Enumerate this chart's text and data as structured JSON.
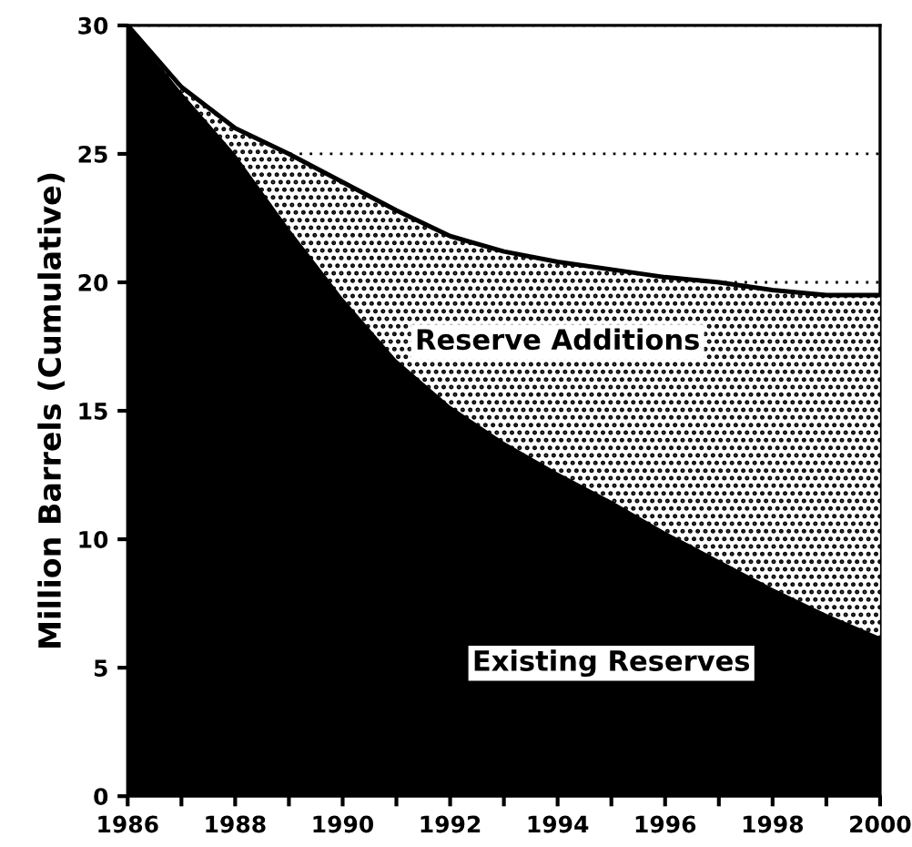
{
  "chart_data": {
    "type": "area",
    "stacked": true,
    "ylabel": "Million Barrels (Cumulative)",
    "x": [
      1986,
      1987,
      1988,
      1989,
      1990,
      1991,
      1992,
      1993,
      1994,
      1995,
      1996,
      1997,
      1998,
      1999,
      2000
    ],
    "series": [
      {
        "name": "Existing Reserves",
        "color": "#000000",
        "values": [
          30,
          27.4,
          25.0,
          22.1,
          19.4,
          17.0,
          15.2,
          13.8,
          12.6,
          11.5,
          10.3,
          9.2,
          8.1,
          7.1,
          6.2
        ]
      },
      {
        "name": "Reserve Additions",
        "color": "#ffffff",
        "values": [
          0,
          0.2,
          1.0,
          2.9,
          4.5,
          5.8,
          6.6,
          7.4,
          8.2,
          9.0,
          9.9,
          10.8,
          11.6,
          12.4,
          13.3
        ]
      }
    ],
    "xlim": [
      1986,
      2000
    ],
    "ylim": [
      0,
      30
    ],
    "xticks": [
      1986,
      {
        "value": 1987,
        "label": null
      },
      1988,
      {
        "value": 1989,
        "label": null
      },
      1990,
      {
        "value": 1991,
        "label": null
      },
      1992,
      {
        "value": 1993,
        "label": null
      },
      1994,
      {
        "value": 1995,
        "label": null
      },
      1996,
      {
        "value": 1997,
        "label": null
      },
      1998,
      {
        "value": 1999,
        "label": null
      },
      2000
    ],
    "yticks": [
      0,
      5,
      10,
      15,
      20,
      25,
      30
    ],
    "grid": "y",
    "legend": false
  }
}
